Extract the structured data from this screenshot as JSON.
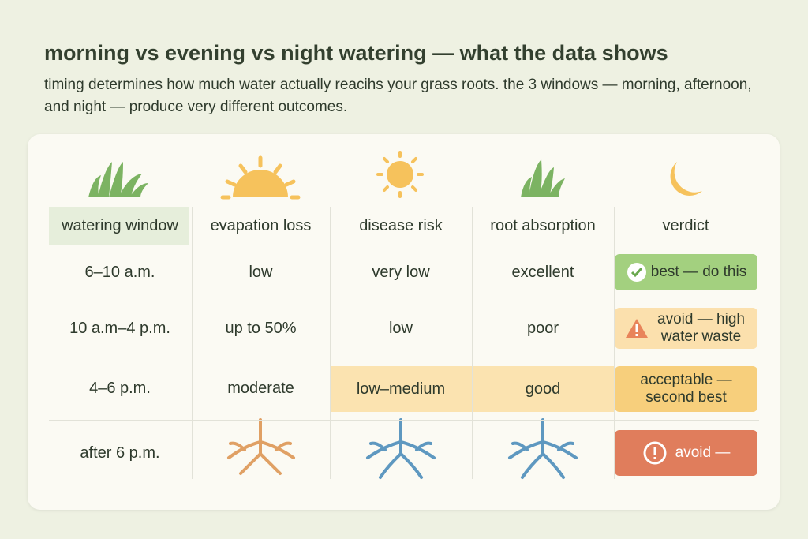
{
  "header": {
    "title": "morning vs evening vs night watering — what the data shows",
    "subtitle": "timing determines how much water actually reacihs your grass roots. the 3 windows — morning, afternoon, and night — produce very different outcomes."
  },
  "table": {
    "columns": [
      "watering window",
      "evapation loss",
      "disease risk",
      "root absorption",
      "verdict"
    ],
    "rows": [
      {
        "window": "6–10 a.m.",
        "evaporation": "low",
        "disease": "very low",
        "absorption": "excellent",
        "verdict": "best — do this"
      },
      {
        "window": "10 a.m–4 p.m.",
        "evaporation": "up to 50%",
        "disease": "low",
        "absorption": "poor",
        "verdict": "avoid — high water waste"
      },
      {
        "window": "4–6 p.m.",
        "evaporation": "moderate",
        "disease": "low–medium",
        "absorption": "good",
        "verdict": "acceptable — second best"
      },
      {
        "window": "after 6 p.m.",
        "verdict": "avoid —"
      }
    ]
  }
}
